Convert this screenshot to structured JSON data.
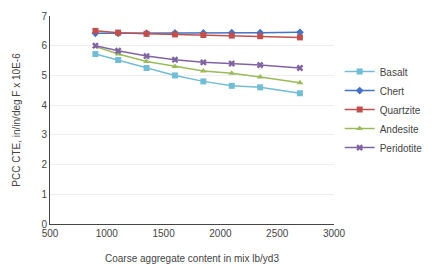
{
  "chart_data": {
    "type": "line",
    "x": [
      900,
      1100,
      1350,
      1600,
      1850,
      2100,
      2350,
      2700
    ],
    "series": [
      {
        "name": "Basalt",
        "color": "#72BCD4",
        "marker": "square",
        "values": [
          5.72,
          5.52,
          5.25,
          5.0,
          4.8,
          4.65,
          4.6,
          4.4
        ]
      },
      {
        "name": "Chert",
        "color": "#4472C4",
        "marker": "diamond",
        "values": [
          6.42,
          6.42,
          6.42,
          6.43,
          6.43,
          6.44,
          6.44,
          6.45
        ]
      },
      {
        "name": "Quartzite",
        "color": "#C0504D",
        "marker": "square",
        "values": [
          6.5,
          6.44,
          6.4,
          6.38,
          6.36,
          6.34,
          6.32,
          6.28
        ]
      },
      {
        "name": "Andesite",
        "color": "#9BBB59",
        "marker": "triangle-up",
        "values": [
          5.97,
          5.72,
          5.47,
          5.3,
          5.15,
          5.07,
          4.95,
          4.75
        ]
      },
      {
        "name": "Peridotite",
        "color": "#8064A2",
        "marker": "x",
        "values": [
          6.0,
          5.83,
          5.65,
          5.53,
          5.44,
          5.4,
          5.35,
          5.25
        ]
      }
    ],
    "xlabel": "Coarse aggregate content in mix lb/yd3",
    "ylabel": "PCC CTE, in/in/deg F x 10E-6",
    "xlim": [
      500,
      3000
    ],
    "ylim": [
      0.0,
      7.0
    ],
    "xticks": [
      500,
      1000,
      1500,
      2000,
      2500,
      3000
    ],
    "yticks": [
      0.0,
      1.0,
      2.0,
      3.0,
      4.0,
      5.0,
      6.0,
      7.0
    ],
    "grid": "y",
    "legend": "right"
  }
}
